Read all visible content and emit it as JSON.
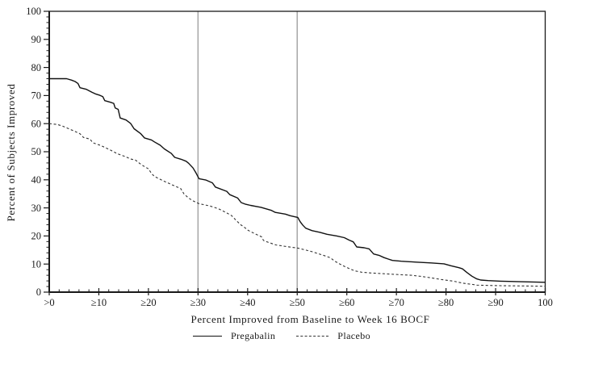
{
  "chart_data": {
    "type": "line",
    "title": "",
    "xlabel": "Percent Improved from Baseline to Week 16 BOCF",
    "ylabel": "Percent of Subjects Improved",
    "xlim": [
      0,
      100
    ],
    "ylim": [
      0,
      100
    ],
    "grid": false,
    "legend_position": "bottom",
    "x_tick_values": [
      0,
      10,
      20,
      30,
      40,
      50,
      60,
      70,
      80,
      90,
      100
    ],
    "x_tick_labels": [
      ">0",
      "≥10",
      "≥20",
      "≥30",
      "≥40",
      "≥50",
      "≥60",
      "≥70",
      "≥80",
      "≥90",
      "100"
    ],
    "y_tick_values": [
      0,
      10,
      20,
      30,
      40,
      50,
      60,
      70,
      80,
      90,
      100
    ],
    "minor_tick_step": 2,
    "reference_lines_x": [
      30,
      50
    ],
    "colors": {
      "axis": "#1a1a1a",
      "pregabalin_line": "#111111",
      "placebo_line": "#333333",
      "reference_line": "#aaaaaa",
      "background": "#ffffff"
    },
    "series": [
      {
        "name": "Pregabalin",
        "style": "solid",
        "points": [
          [
            0,
            76
          ],
          [
            3.5,
            76
          ],
          [
            4.5,
            75.5
          ],
          [
            5.2,
            75
          ],
          [
            5.8,
            74.3
          ],
          [
            6.2,
            72.8
          ],
          [
            7.5,
            72.2
          ],
          [
            8.6,
            71.2
          ],
          [
            9.3,
            70.6
          ],
          [
            10.2,
            70.1
          ],
          [
            10.8,
            69.6
          ],
          [
            11.2,
            68.2
          ],
          [
            12.4,
            67.6
          ],
          [
            13,
            67.2
          ],
          [
            13.3,
            65.6
          ],
          [
            13.9,
            65.1
          ],
          [
            14.3,
            62
          ],
          [
            15.5,
            61.3
          ],
          [
            16.4,
            60.1
          ],
          [
            17.1,
            58.2
          ],
          [
            18.4,
            56.5
          ],
          [
            19.2,
            54.9
          ],
          [
            20.6,
            54.2
          ],
          [
            21.2,
            53.5
          ],
          [
            22.4,
            52.3
          ],
          [
            23.2,
            51
          ],
          [
            24.6,
            49.4
          ],
          [
            25.3,
            48
          ],
          [
            26.6,
            47.3
          ],
          [
            27.6,
            46.6
          ],
          [
            28.1,
            45.9
          ],
          [
            29,
            44.2
          ],
          [
            29.6,
            42.4
          ],
          [
            30.2,
            40.4
          ],
          [
            31.6,
            39.9
          ],
          [
            32.9,
            38.9
          ],
          [
            33.5,
            37.4
          ],
          [
            35.8,
            35.9
          ],
          [
            36.4,
            34.7
          ],
          [
            38,
            33.5
          ],
          [
            38.7,
            31.9
          ],
          [
            39.6,
            31.3
          ],
          [
            40.6,
            30.9
          ],
          [
            42.7,
            30.2
          ],
          [
            44.8,
            29.1
          ],
          [
            45.6,
            28.4
          ],
          [
            47.6,
            27.8
          ],
          [
            48.6,
            27.2
          ],
          [
            50.1,
            26.6
          ],
          [
            50.6,
            25.1
          ],
          [
            51.1,
            23.9
          ],
          [
            51.7,
            22.8
          ],
          [
            53,
            21.9
          ],
          [
            54.6,
            21.3
          ],
          [
            56,
            20.6
          ],
          [
            58,
            20
          ],
          [
            59.5,
            19.4
          ],
          [
            60.5,
            18.5
          ],
          [
            61.3,
            17.9
          ],
          [
            62,
            16.1
          ],
          [
            63.5,
            15.8
          ],
          [
            64.5,
            15.4
          ],
          [
            65.4,
            13.6
          ],
          [
            66.5,
            13.1
          ],
          [
            67.5,
            12.3
          ],
          [
            68.3,
            11.8
          ],
          [
            69.2,
            11.3
          ],
          [
            71,
            11
          ],
          [
            74,
            10.7
          ],
          [
            77,
            10.4
          ],
          [
            79.6,
            10.1
          ],
          [
            81,
            9.4
          ],
          [
            82.6,
            8.7
          ],
          [
            83.3,
            8.3
          ],
          [
            84.2,
            7
          ],
          [
            85.2,
            5.7
          ],
          [
            86.2,
            4.7
          ],
          [
            87,
            4.3
          ],
          [
            88.5,
            4.1
          ],
          [
            91,
            3.9
          ],
          [
            95,
            3.7
          ],
          [
            100,
            3.5
          ]
        ]
      },
      {
        "name": "Placebo",
        "style": "dashed",
        "points": [
          [
            0,
            60
          ],
          [
            1.6,
            59.7
          ],
          [
            2.6,
            59.2
          ],
          [
            4.2,
            58
          ],
          [
            5.2,
            57.2
          ],
          [
            6.2,
            56.4
          ],
          [
            6.9,
            55.1
          ],
          [
            8.2,
            54.5
          ],
          [
            8.8,
            53.2
          ],
          [
            10.4,
            52.2
          ],
          [
            12.1,
            50.8
          ],
          [
            13.7,
            49.3
          ],
          [
            15.3,
            48.3
          ],
          [
            16.4,
            47.4
          ],
          [
            17.4,
            47
          ],
          [
            18.2,
            45.9
          ],
          [
            19,
            44.9
          ],
          [
            20,
            43.9
          ],
          [
            20.6,
            42.3
          ],
          [
            21.2,
            41.2
          ],
          [
            22.9,
            39.7
          ],
          [
            24.8,
            38.2
          ],
          [
            25.6,
            37.6
          ],
          [
            26.5,
            36.9
          ],
          [
            27.2,
            34.9
          ],
          [
            28.1,
            33.5
          ],
          [
            28.9,
            32.6
          ],
          [
            30.2,
            31.5
          ],
          [
            32.4,
            30.7
          ],
          [
            34.1,
            29.7
          ],
          [
            35.7,
            28.3
          ],
          [
            36.8,
            27.2
          ],
          [
            37.6,
            25.7
          ],
          [
            38.6,
            24
          ],
          [
            39.2,
            23.3
          ],
          [
            40.1,
            22
          ],
          [
            41.7,
            20.6
          ],
          [
            42.8,
            19.7
          ],
          [
            43.2,
            18.4
          ],
          [
            44.1,
            17.8
          ],
          [
            45.7,
            16.8
          ],
          [
            47.9,
            16.2
          ],
          [
            50.1,
            15.7
          ],
          [
            51.5,
            15.1
          ],
          [
            53,
            14.4
          ],
          [
            54.2,
            13.7
          ],
          [
            55.5,
            13
          ],
          [
            56.6,
            12.3
          ],
          [
            57.6,
            11
          ],
          [
            58.6,
            10
          ],
          [
            59.6,
            9.1
          ],
          [
            60.6,
            8.3
          ],
          [
            61.6,
            7.6
          ],
          [
            63,
            7.1
          ],
          [
            65,
            6.8
          ],
          [
            67,
            6.6
          ],
          [
            70,
            6.3
          ],
          [
            73,
            6
          ],
          [
            75,
            5.6
          ],
          [
            77,
            5.1
          ],
          [
            79,
            4.5
          ],
          [
            81.5,
            3.9
          ],
          [
            83.4,
            3.2
          ],
          [
            85.2,
            2.8
          ],
          [
            86.2,
            2.5
          ],
          [
            88,
            2.4
          ],
          [
            91,
            2.3
          ],
          [
            95,
            2.2
          ],
          [
            100,
            2.1
          ]
        ]
      }
    ]
  }
}
